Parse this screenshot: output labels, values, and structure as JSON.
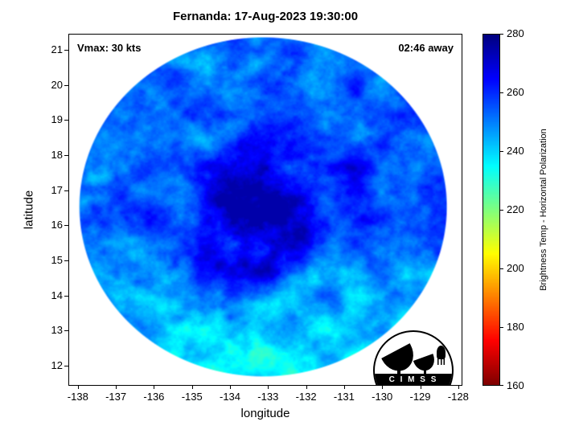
{
  "chart_data": {
    "type": "heatmap",
    "title": "Fernanda: 17-Aug-2023 19:30:00",
    "xlabel": "longitude",
    "ylabel": "latitude",
    "xlim": [
      -138.25,
      -127.89
    ],
    "ylim": [
      11.43,
      21.46
    ],
    "xticks": [
      -138,
      -137,
      -136,
      -135,
      -134,
      -133,
      -132,
      -131,
      -130,
      -129,
      -128
    ],
    "yticks": [
      12,
      13,
      14,
      15,
      16,
      17,
      18,
      19,
      20,
      21
    ],
    "grid": false,
    "annotations": [
      {
        "text": "Vmax: 30 kts",
        "position": "top-left"
      },
      {
        "text": "02:46 away",
        "position": "top-right"
      }
    ],
    "colorbar": {
      "label": "Brightness Temp - Horizontal Polarization",
      "min": 160,
      "max": 280,
      "ticks": [
        160,
        180,
        200,
        220,
        240,
        260,
        280
      ],
      "colormap": "jet_reversed",
      "position": "right"
    },
    "swath": {
      "shape": "circular",
      "center_lon": -133.15,
      "center_lat": 16.55,
      "radius_deg": 4.85,
      "field": "microwave brightness temperature (K)",
      "typical_temp_K": 254,
      "core_temp_K": 267,
      "south_band_temp_K": 237,
      "description": "circular satellite microwave swath; blue field with dark-blue cyclonic spiral core near center, cyan/green cooler band across the southern edge and a cyan patch east-southeast"
    }
  },
  "logo": {
    "letters": "C I M S S"
  }
}
